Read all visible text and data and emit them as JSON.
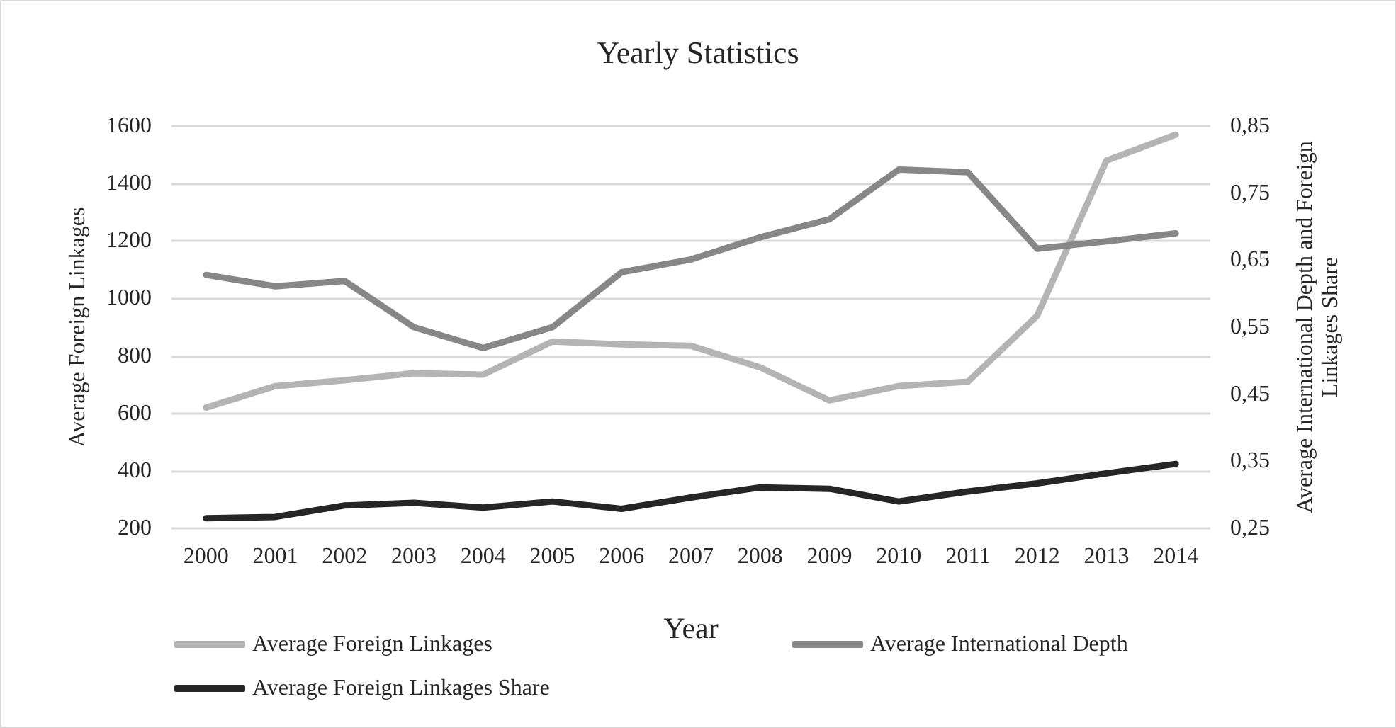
{
  "chart_data": {
    "type": "line",
    "title": "Yearly Statistics",
    "xlabel": "Year",
    "ylabel": "Average Foreign Linkages",
    "y2label": "Average International Depth and Foreign Linkages Share",
    "categories": [
      "2000",
      "2001",
      "2002",
      "2003",
      "2004",
      "2005",
      "2006",
      "2007",
      "2008",
      "2009",
      "2010",
      "2011",
      "2012",
      "2013",
      "2014"
    ],
    "series": [
      {
        "name": "Average Foreign Linkages",
        "color": "#b4b4b4",
        "values": [
          620,
          695,
          715,
          740,
          735,
          850,
          840,
          835,
          760,
          645,
          695,
          710,
          940,
          1480,
          1570
        ]
      },
      {
        "name": "Average International Depth",
        "color": "#878787",
        "axis": "y2",
        "values": [
          0.628,
          0.611,
          0.619,
          0.55,
          0.519,
          0.55,
          0.632,
          0.651,
          0.684,
          0.711,
          0.785,
          0.781,
          0.667,
          0.678,
          0.69
        ]
      },
      {
        "name": "Average Foreign Linkages Share",
        "color": "#262626",
        "axis": "y2",
        "values": [
          0.265,
          0.267,
          0.284,
          0.288,
          0.281,
          0.29,
          0.279,
          0.296,
          0.311,
          0.309,
          0.29,
          0.305,
          0.317,
          0.332,
          0.346
        ]
      }
    ],
    "ylim": [
      200,
      1600
    ],
    "yticks": [
      200,
      400,
      600,
      800,
      1000,
      1200,
      1400,
      1600
    ],
    "y2lim": [
      0.25,
      0.85
    ],
    "y2ticks": [
      {
        "value": 0.25,
        "label": "0,25"
      },
      {
        "value": 0.35,
        "label": "0,35"
      },
      {
        "value": 0.45,
        "label": "0,45"
      },
      {
        "value": 0.55,
        "label": "0,55"
      },
      {
        "value": 0.65,
        "label": "0,65"
      },
      {
        "value": 0.75,
        "label": "0,75"
      },
      {
        "value": 0.85,
        "label": "0,85"
      }
    ],
    "grid": "y",
    "legend": "bottom",
    "marker": "none",
    "line_style": "solid"
  }
}
